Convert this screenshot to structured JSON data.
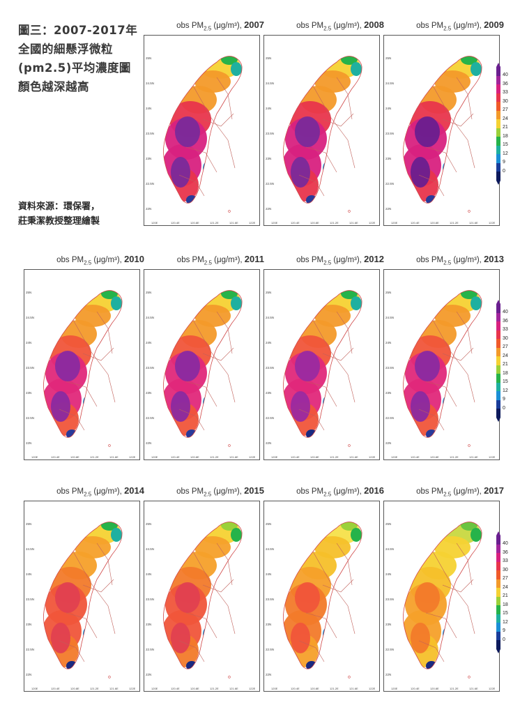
{
  "caption": {
    "lines": [
      "圖三：2007-2017年",
      "全國的細懸浮微粒",
      "(pm2.5)平均濃度圖",
      "顏色越深越高"
    ]
  },
  "source": {
    "lines": [
      "資料來源：環保署，",
      "莊秉潔教授整理繪製"
    ]
  },
  "panel_title_prefix": "obs PM",
  "panel_title_sub": "2.5",
  "panel_title_unit": " (μg/m³), ",
  "years": [
    "2007",
    "2008",
    "2009",
    "2010",
    "2011",
    "2012",
    "2013",
    "2014",
    "2015",
    "2016",
    "2017"
  ],
  "y_ticks": [
    "25N",
    "24.5N",
    "24N",
    "23.5N",
    "23N",
    "22.5N",
    "22N"
  ],
  "x_ticks": [
    "120E",
    "120.4E",
    "120.8E",
    "121.2E",
    "121.6E",
    "122E"
  ],
  "colorbar": {
    "labels": [
      "40",
      "36",
      "33",
      "30",
      "27",
      "24",
      "21",
      "18",
      "15",
      "12",
      "9",
      "0"
    ],
    "colors": [
      "#6a1f8f",
      "#a1259b",
      "#d8217f",
      "#e8354c",
      "#f05a2a",
      "#f39a2a",
      "#f5d233",
      "#9bd13a",
      "#26b34a",
      "#1fb0a0",
      "#1b8fd6",
      "#1a3d9a",
      "#0d1a5c"
    ]
  },
  "panels": [
    {
      "year": "2007",
      "palette": [
        "#7a2a9a",
        "#d8217f",
        "#e8354c",
        "#f39a2a",
        "#f5d233",
        "#26b34a",
        "#1fb0a0",
        "#1b8fd6",
        "#2a3a99"
      ]
    },
    {
      "year": "2008",
      "palette": [
        "#7a2a9a",
        "#d8217f",
        "#e8354c",
        "#f39a2a",
        "#f5d233",
        "#26b34a",
        "#1fb0a0",
        "#1b8fd6",
        "#2a3a99"
      ]
    },
    {
      "year": "2009",
      "palette": [
        "#6a1f8f",
        "#d8217f",
        "#e8354c",
        "#f39a2a",
        "#f5d233",
        "#26b34a",
        "#1fb0a0",
        "#1b8fd6",
        "#2a3a99"
      ]
    },
    {
      "year": "2010",
      "palette": [
        "#8a2aa0",
        "#e0287a",
        "#f0553a",
        "#f39a2a",
        "#f5d233",
        "#26b34a",
        "#1fb0a0",
        "#1b8fd6",
        "#2a3a99"
      ]
    },
    {
      "year": "2011",
      "palette": [
        "#8a2aa0",
        "#e0287a",
        "#f0553a",
        "#f39a2a",
        "#f5d233",
        "#26b34a",
        "#1fb0a0",
        "#1b8fd6",
        "#2a3a99"
      ]
    },
    {
      "year": "2012",
      "palette": [
        "#9a2aa0",
        "#e0287a",
        "#f0553a",
        "#f39a2a",
        "#f5d233",
        "#26b34a",
        "#1fb0a0",
        "#1b8fd6",
        "#1a2a80"
      ]
    },
    {
      "year": "2013",
      "palette": [
        "#8a2aa0",
        "#e0287a",
        "#f0553a",
        "#f39a2a",
        "#f5d233",
        "#26b34a",
        "#1fb0a0",
        "#1b8fd6",
        "#2a3a99"
      ]
    },
    {
      "year": "2014",
      "palette": [
        "#e04050",
        "#f0553a",
        "#f27a2a",
        "#f5a02a",
        "#f5d233",
        "#26b34a",
        "#1fb0a0",
        "#1b8fd6",
        "#1a2a80"
      ]
    },
    {
      "year": "2015",
      "palette": [
        "#e04050",
        "#f0553a",
        "#f27a2a",
        "#f5a02a",
        "#f5d233",
        "#9bd13a",
        "#26b34a",
        "#1b8fd6",
        "#1a2a80"
      ]
    },
    {
      "year": "2016",
      "palette": [
        "#f0553a",
        "#f27a2a",
        "#f5a02a",
        "#f5c02a",
        "#f5e04a",
        "#9bd13a",
        "#26b34a",
        "#1b8fd6",
        "#1a2a80"
      ]
    },
    {
      "year": "2017",
      "palette": [
        "#f27a2a",
        "#f5a02a",
        "#f5c02a",
        "#f5d233",
        "#c8d840",
        "#6ac440",
        "#26b34a",
        "#1b8fd6",
        "#1a2a80"
      ]
    }
  ]
}
